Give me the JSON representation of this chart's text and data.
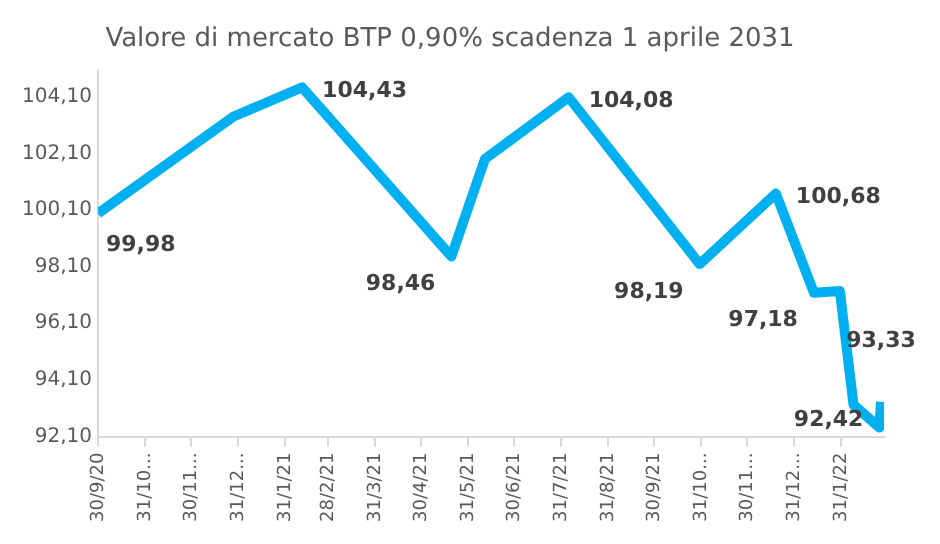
{
  "chart_data": {
    "type": "line",
    "title": "Valore di mercato BTP 0,90% scadenza 1 aprile 2031",
    "x": [
      "2020-09-30",
      "2020-12-28",
      "2021-02-11",
      "2021-05-20",
      "2021-06-11",
      "2021-08-05",
      "2021-10-30",
      "2021-12-19",
      "2022-01-13",
      "2022-01-30",
      "2022-02-08",
      "2022-02-25",
      "2022-02-26"
    ],
    "series": [
      {
        "color": "#00b0f0",
        "values": [
          99.98,
          103.4,
          104.43,
          98.46,
          101.9,
          104.08,
          98.19,
          100.68,
          97.18,
          97.24,
          93.22,
          92.42,
          93.33
        ],
        "value_labels": [
          "99,98",
          null,
          "104,43",
          "98,46",
          null,
          "104,08",
          "98,19",
          "100,68",
          "97,18",
          null,
          null,
          "92,42",
          "93,33"
        ]
      }
    ],
    "xlim": [
      "2020-09-30",
      "2022-02-28"
    ],
    "xticks": [
      {
        "value": "2020-09-30",
        "label": "30/9/20"
      },
      {
        "value": "2020-10-31",
        "label": "31/10..."
      },
      {
        "value": "2020-11-30",
        "label": "30/11..."
      },
      {
        "value": "2020-12-31",
        "label": "31/12..."
      },
      {
        "value": "2021-01-31",
        "label": "31/1/21"
      },
      {
        "value": "2021-02-28",
        "label": "28/2/21"
      },
      {
        "value": "2021-03-31",
        "label": "31/3/21"
      },
      {
        "value": "2021-04-30",
        "label": "30/4/21"
      },
      {
        "value": "2021-05-31",
        "label": "31/5/21"
      },
      {
        "value": "2021-06-30",
        "label": "30/6/21"
      },
      {
        "value": "2021-07-31",
        "label": "31/7/21"
      },
      {
        "value": "2021-08-31",
        "label": "31/8/21"
      },
      {
        "value": "2021-09-30",
        "label": "30/9/21"
      },
      {
        "value": "2021-10-31",
        "label": "31/10..."
      },
      {
        "value": "2021-11-30",
        "label": "30/11..."
      },
      {
        "value": "2021-12-31",
        "label": "31/12..."
      },
      {
        "value": "2022-01-31",
        "label": "31/1/22"
      }
    ],
    "ylim": [
      92.1,
      105
    ],
    "yticks": [
      {
        "value": 92.1,
        "label": "92,10"
      },
      {
        "value": 94.1,
        "label": "94,10"
      },
      {
        "value": 96.1,
        "label": "96,10"
      },
      {
        "value": 98.1,
        "label": "98,10"
      },
      {
        "value": 100.1,
        "label": "100,10"
      },
      {
        "value": 102.1,
        "label": "102,10"
      },
      {
        "value": 104.1,
        "label": "104,10"
      }
    ],
    "grid": false,
    "legend": false,
    "marker": "none",
    "line_style": "solid"
  }
}
